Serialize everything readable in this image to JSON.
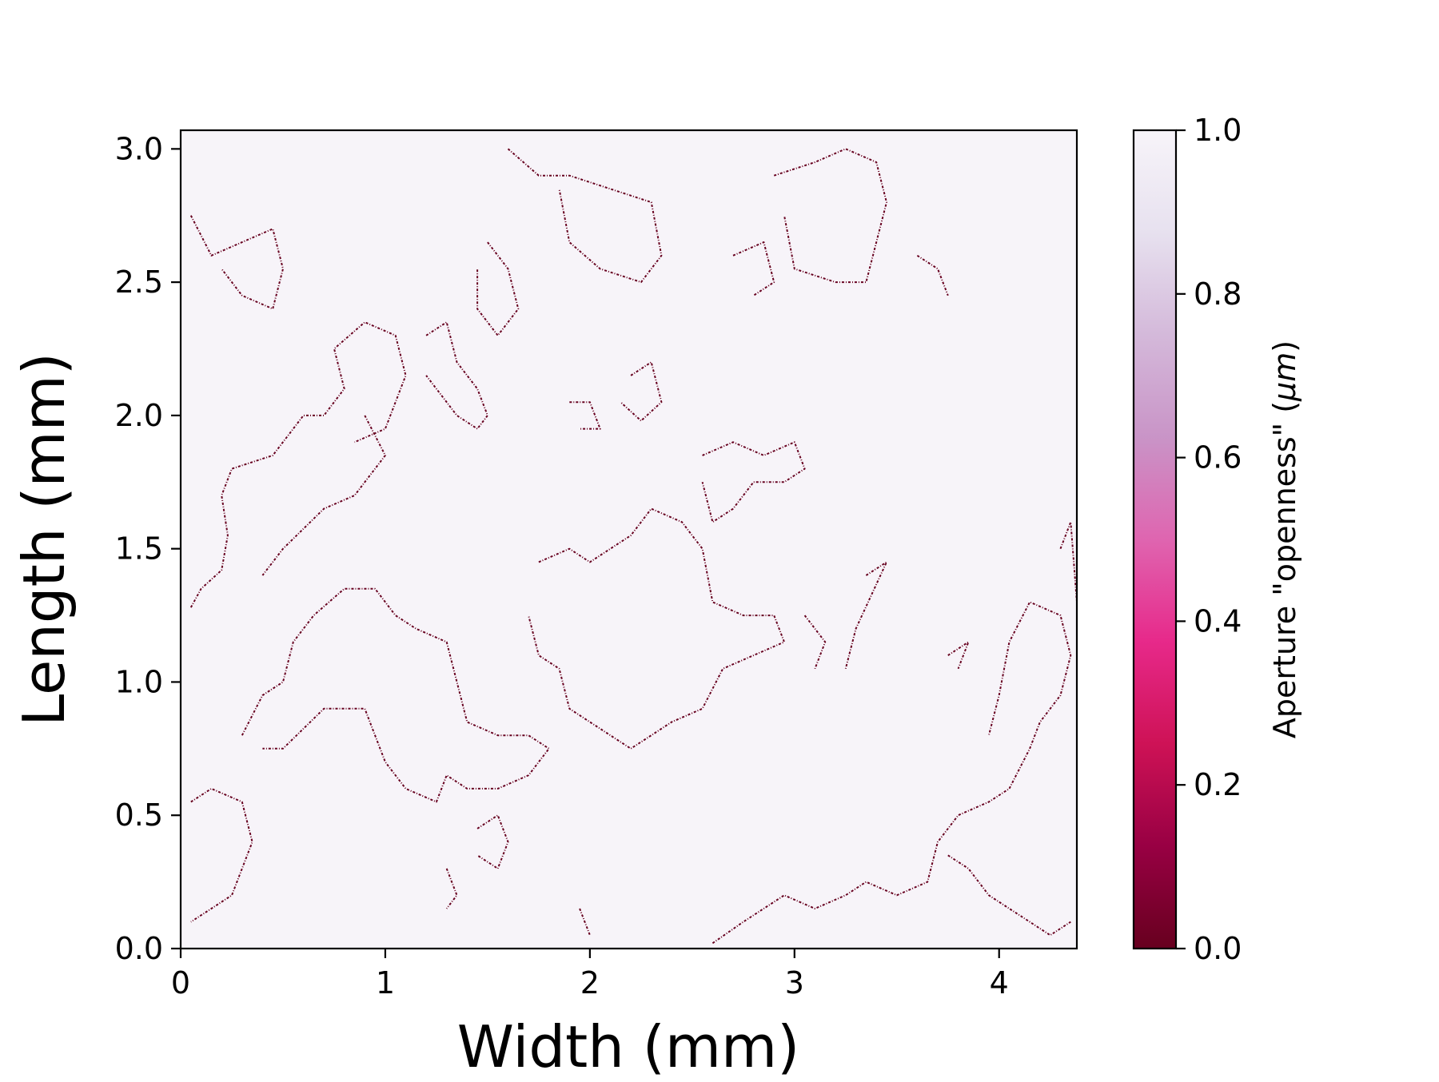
{
  "chart_data": {
    "type": "heatmap",
    "title": "",
    "xlabel": "Width (mm)",
    "ylabel": "Length (mm)",
    "xlim": [
      0,
      4.38
    ],
    "ylim": [
      0,
      3.07
    ],
    "x_ticks": [
      "0",
      "1",
      "2",
      "3",
      "4"
    ],
    "y_ticks": [
      "0.0",
      "0.5",
      "1.0",
      "1.5",
      "2.0",
      "2.5",
      "3.0"
    ],
    "grid": false,
    "legend": "none",
    "colorbar": {
      "label_prefix": "Aperture \"openness\" (",
      "label_unit": "μm",
      "label_suffix": ")",
      "range": [
        0.0,
        1.0
      ],
      "ticks": [
        "0.0",
        "0.2",
        "0.4",
        "0.6",
        "0.8",
        "1.0"
      ],
      "colormap": "PuRd_r",
      "stops": [
        "#67001f",
        "#980043",
        "#ce1256",
        "#e7298a",
        "#df65b0",
        "#c994c7",
        "#d4b9da",
        "#e7e1ef",
        "#f7f4f9"
      ]
    },
    "background_value": 1.0,
    "contact_value": 0.0,
    "contact_color": "#67001f",
    "background_color": "#f7f4f9",
    "contact_regions": [
      {
        "path": [
          [
            0.05,
            1.28
          ],
          [
            0.1,
            1.35
          ],
          [
            0.2,
            1.42
          ],
          [
            0.23,
            1.55
          ],
          [
            0.2,
            1.7
          ],
          [
            0.25,
            1.8
          ],
          [
            0.45,
            1.85
          ],
          [
            0.6,
            2.0
          ],
          [
            0.7,
            2.0
          ],
          [
            0.8,
            2.1
          ],
          [
            0.75,
            2.25
          ],
          [
            0.9,
            2.35
          ],
          [
            1.05,
            2.3
          ],
          [
            1.1,
            2.15
          ],
          [
            1.0,
            1.95
          ],
          [
            0.85,
            1.9
          ]
        ]
      },
      {
        "path": [
          [
            1.2,
            2.3
          ],
          [
            1.3,
            2.35
          ],
          [
            1.35,
            2.2
          ],
          [
            1.45,
            2.1
          ],
          [
            1.5,
            2.0
          ],
          [
            1.45,
            1.95
          ],
          [
            1.35,
            2.0
          ],
          [
            1.2,
            2.15
          ]
        ]
      },
      {
        "path": [
          [
            0.9,
            2.0
          ],
          [
            1.0,
            1.85
          ],
          [
            0.85,
            1.7
          ],
          [
            0.7,
            1.65
          ],
          [
            0.5,
            1.5
          ],
          [
            0.4,
            1.4
          ]
        ]
      },
      {
        "path": [
          [
            0.05,
            2.75
          ],
          [
            0.15,
            2.6
          ],
          [
            0.3,
            2.65
          ],
          [
            0.45,
            2.7
          ],
          [
            0.5,
            2.55
          ],
          [
            0.45,
            2.4
          ],
          [
            0.3,
            2.45
          ],
          [
            0.2,
            2.55
          ]
        ]
      },
      {
        "path": [
          [
            1.6,
            3.0
          ],
          [
            1.75,
            2.9
          ],
          [
            1.9,
            2.9
          ],
          [
            2.1,
            2.85
          ],
          [
            2.3,
            2.8
          ],
          [
            2.35,
            2.6
          ],
          [
            2.25,
            2.5
          ],
          [
            2.05,
            2.55
          ],
          [
            1.9,
            2.65
          ],
          [
            1.85,
            2.85
          ]
        ]
      },
      {
        "path": [
          [
            1.5,
            2.65
          ],
          [
            1.6,
            2.55
          ],
          [
            1.65,
            2.4
          ],
          [
            1.55,
            2.3
          ],
          [
            1.45,
            2.4
          ],
          [
            1.45,
            2.55
          ]
        ]
      },
      {
        "path": [
          [
            2.9,
            2.9
          ],
          [
            3.1,
            2.95
          ],
          [
            3.25,
            3.0
          ],
          [
            3.4,
            2.95
          ],
          [
            3.45,
            2.8
          ],
          [
            3.4,
            2.65
          ],
          [
            3.35,
            2.5
          ],
          [
            3.2,
            2.5
          ],
          [
            3.0,
            2.55
          ],
          [
            2.95,
            2.75
          ]
        ]
      },
      {
        "path": [
          [
            2.7,
            2.6
          ],
          [
            2.85,
            2.65
          ],
          [
            2.9,
            2.5
          ],
          [
            2.8,
            2.45
          ]
        ]
      },
      {
        "path": [
          [
            3.6,
            2.6
          ],
          [
            3.7,
            2.55
          ],
          [
            3.75,
            2.45
          ]
        ]
      },
      {
        "path": [
          [
            2.2,
            2.15
          ],
          [
            2.3,
            2.2
          ],
          [
            2.35,
            2.05
          ],
          [
            2.25,
            1.98
          ],
          [
            2.15,
            2.05
          ]
        ]
      },
      {
        "path": [
          [
            1.9,
            2.05
          ],
          [
            2.0,
            2.05
          ],
          [
            2.05,
            1.95
          ],
          [
            1.95,
            1.95
          ]
        ]
      },
      {
        "path": [
          [
            2.55,
            1.85
          ],
          [
            2.7,
            1.9
          ],
          [
            2.85,
            1.85
          ],
          [
            3.0,
            1.9
          ],
          [
            3.05,
            1.8
          ],
          [
            2.95,
            1.75
          ],
          [
            2.8,
            1.75
          ],
          [
            2.7,
            1.65
          ],
          [
            2.6,
            1.6
          ],
          [
            2.55,
            1.75
          ]
        ]
      },
      {
        "path": [
          [
            1.75,
            1.45
          ],
          [
            1.9,
            1.5
          ],
          [
            2.0,
            1.45
          ],
          [
            2.1,
            1.5
          ],
          [
            2.2,
            1.55
          ],
          [
            2.3,
            1.65
          ],
          [
            2.45,
            1.6
          ],
          [
            2.55,
            1.5
          ],
          [
            2.6,
            1.3
          ],
          [
            2.75,
            1.25
          ],
          [
            2.9,
            1.25
          ],
          [
            2.95,
            1.15
          ],
          [
            2.8,
            1.1
          ],
          [
            2.65,
            1.05
          ],
          [
            2.55,
            0.9
          ],
          [
            2.4,
            0.85
          ],
          [
            2.3,
            0.8
          ],
          [
            2.2,
            0.75
          ],
          [
            2.1,
            0.8
          ],
          [
            2.0,
            0.85
          ],
          [
            1.9,
            0.9
          ],
          [
            1.85,
            1.05
          ],
          [
            1.75,
            1.1
          ],
          [
            1.7,
            1.25
          ]
        ]
      },
      {
        "path": [
          [
            0.3,
            0.8
          ],
          [
            0.4,
            0.95
          ],
          [
            0.5,
            1.0
          ],
          [
            0.55,
            1.15
          ],
          [
            0.65,
            1.25
          ],
          [
            0.8,
            1.35
          ],
          [
            0.95,
            1.35
          ],
          [
            1.05,
            1.25
          ],
          [
            1.15,
            1.2
          ],
          [
            1.3,
            1.15
          ],
          [
            1.35,
            1.0
          ],
          [
            1.4,
            0.85
          ],
          [
            1.55,
            0.8
          ],
          [
            1.7,
            0.8
          ],
          [
            1.8,
            0.75
          ],
          [
            1.7,
            0.65
          ],
          [
            1.55,
            0.6
          ],
          [
            1.4,
            0.6
          ],
          [
            1.3,
            0.65
          ],
          [
            1.25,
            0.55
          ],
          [
            1.1,
            0.6
          ],
          [
            1.0,
            0.7
          ],
          [
            0.9,
            0.9
          ],
          [
            0.7,
            0.9
          ],
          [
            0.5,
            0.75
          ],
          [
            0.4,
            0.75
          ]
        ]
      },
      {
        "path": [
          [
            0.05,
            0.55
          ],
          [
            0.15,
            0.6
          ],
          [
            0.3,
            0.55
          ],
          [
            0.35,
            0.4
          ],
          [
            0.3,
            0.3
          ],
          [
            0.25,
            0.2
          ],
          [
            0.15,
            0.15
          ],
          [
            0.05,
            0.1
          ]
        ]
      },
      {
        "path": [
          [
            1.45,
            0.45
          ],
          [
            1.55,
            0.5
          ],
          [
            1.6,
            0.4
          ],
          [
            1.55,
            0.3
          ],
          [
            1.45,
            0.35
          ]
        ]
      },
      {
        "path": [
          [
            1.3,
            0.3
          ],
          [
            1.35,
            0.2
          ],
          [
            1.3,
            0.15
          ]
        ]
      },
      {
        "path": [
          [
            2.6,
            0.02
          ],
          [
            2.75,
            0.1
          ],
          [
            2.95,
            0.2
          ],
          [
            3.1,
            0.15
          ],
          [
            3.25,
            0.2
          ],
          [
            3.35,
            0.25
          ],
          [
            3.5,
            0.2
          ],
          [
            3.65,
            0.25
          ],
          [
            3.7,
            0.4
          ],
          [
            3.8,
            0.5
          ],
          [
            3.95,
            0.55
          ],
          [
            4.05,
            0.6
          ],
          [
            4.15,
            0.75
          ],
          [
            4.2,
            0.85
          ],
          [
            4.3,
            0.95
          ],
          [
            4.35,
            1.1
          ],
          [
            4.3,
            1.25
          ],
          [
            4.15,
            1.3
          ],
          [
            4.05,
            1.15
          ],
          [
            4.0,
            0.95
          ],
          [
            3.95,
            0.8
          ]
        ]
      },
      {
        "path": [
          [
            3.75,
            0.35
          ],
          [
            3.85,
            0.3
          ],
          [
            3.95,
            0.2
          ],
          [
            4.05,
            0.15
          ],
          [
            4.15,
            0.1
          ],
          [
            4.25,
            0.05
          ],
          [
            4.35,
            0.1
          ]
        ]
      },
      {
        "path": [
          [
            3.35,
            1.4
          ],
          [
            3.45,
            1.45
          ],
          [
            3.3,
            1.2
          ],
          [
            3.25,
            1.05
          ]
        ]
      },
      {
        "path": [
          [
            3.05,
            1.25
          ],
          [
            3.15,
            1.15
          ],
          [
            3.1,
            1.05
          ]
        ]
      },
      {
        "path": [
          [
            3.75,
            1.1
          ],
          [
            3.85,
            1.15
          ],
          [
            3.8,
            1.05
          ]
        ]
      },
      {
        "path": [
          [
            4.3,
            1.5
          ],
          [
            4.35,
            1.6
          ],
          [
            4.38,
            1.3
          ]
        ]
      },
      {
        "path": [
          [
            1.95,
            0.15
          ],
          [
            2.0,
            0.05
          ]
        ]
      }
    ]
  }
}
